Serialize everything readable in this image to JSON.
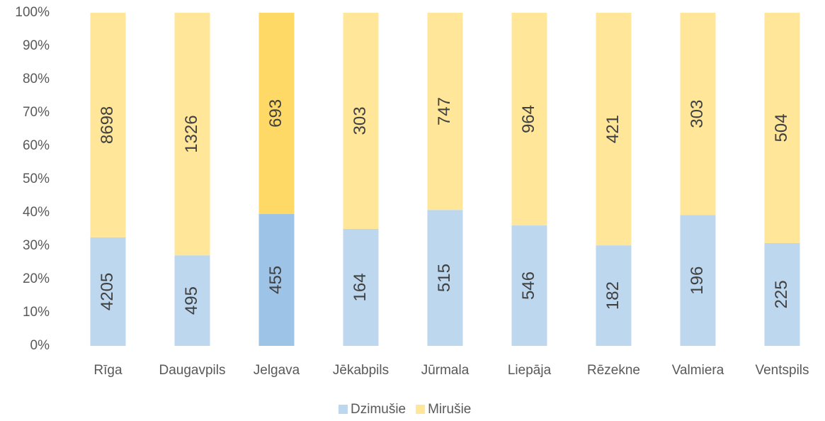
{
  "chart_data": {
    "type": "bar",
    "stacking": "percent",
    "categories": [
      "Rīga",
      "Daugavpils",
      "Jelgava",
      "Jēkabpils",
      "Jūrmala",
      "Liepāja",
      "Rēzekne",
      "Valmiera",
      "Ventspils"
    ],
    "series": [
      {
        "name": "Dzimušie",
        "color": "#bdd7ee",
        "values": [
          4205,
          495,
          455,
          164,
          515,
          546,
          182,
          196,
          225
        ]
      },
      {
        "name": "Mirušie",
        "color": "#ffe699",
        "values": [
          8698,
          1326,
          693,
          303,
          747,
          964,
          421,
          303,
          504
        ]
      }
    ],
    "highlight_category": "Jelgava",
    "highlight_colors": [
      "#9dc3e6",
      "#ffd966"
    ],
    "ylim": [
      0,
      100
    ],
    "yticks": [
      {
        "value": 0,
        "label": "0%"
      },
      {
        "value": 10,
        "label": "10%"
      },
      {
        "value": 20,
        "label": "20%"
      },
      {
        "value": 30,
        "label": "30%"
      },
      {
        "value": 40,
        "label": "40%"
      },
      {
        "value": 50,
        "label": "50%"
      },
      {
        "value": 60,
        "label": "60%"
      },
      {
        "value": 70,
        "label": "70%"
      },
      {
        "value": 80,
        "label": "80%"
      },
      {
        "value": 90,
        "label": "90%"
      },
      {
        "value": 100,
        "label": "100%"
      }
    ],
    "grid": false,
    "legend": "bottom"
  }
}
